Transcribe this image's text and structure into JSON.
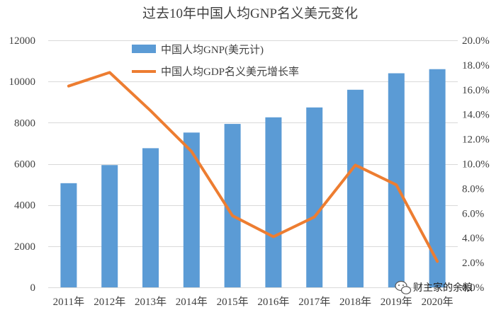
{
  "chart_data": {
    "type": "bar",
    "title": "过去10年中国人均GNP名义美元变化",
    "categories": [
      "2011年",
      "2012年",
      "2013年",
      "2014年",
      "2015年",
      "2016年",
      "2017年",
      "2018年",
      "2019年",
      "2020年"
    ],
    "series": [
      {
        "name": "中国人均GNP(美元计)",
        "type": "bar",
        "axis": "left",
        "color": "#5b9bd5",
        "values": [
          5060,
          5940,
          6760,
          7520,
          7940,
          8260,
          8740,
          9600,
          10400,
          10600
        ]
      },
      {
        "name": "中国人均GDP名义美元增长率",
        "type": "line",
        "axis": "right",
        "color": "#ed7d31",
        "values": [
          16.3,
          17.4,
          14.3,
          11.0,
          5.8,
          4.1,
          5.7,
          9.9,
          8.3,
          2.1
        ]
      }
    ],
    "y_left": {
      "min": 0,
      "max": 12000,
      "step": 2000,
      "ticks": [
        "0",
        "2000",
        "4000",
        "6000",
        "8000",
        "10000",
        "12000"
      ]
    },
    "y_right": {
      "min": 0,
      "max": 20,
      "step": 2,
      "ticks": [
        "0.0%",
        "2.0%",
        "4.0%",
        "6.0%",
        "8.0%",
        "10.0%",
        "12.0%",
        "14.0%",
        "16.0%",
        "18.0%",
        "20.0%"
      ]
    },
    "grid": true,
    "legend_position": "top-left"
  },
  "watermark": {
    "icon": "wechat-icon",
    "text": "财主家的余粮"
  }
}
